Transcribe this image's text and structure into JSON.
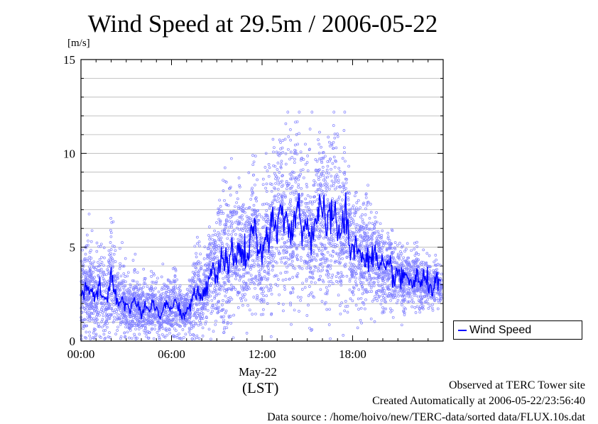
{
  "chart_data": {
    "type": "line",
    "title": "Wind Speed at 29.5m / 2006-05-22",
    "ylabel": "[m/s]",
    "xlabel": "(LST)",
    "x_date_label": "May-22",
    "ylim": [
      0,
      15
    ],
    "yticks": [
      "0",
      "5",
      "10",
      "15"
    ],
    "xlim_hours": [
      0,
      24
    ],
    "xticks": [
      "00:00",
      "06:00",
      "12:00",
      "18:00"
    ],
    "grid": true,
    "legend_position": "right-below-plot",
    "series": [
      {
        "name": "Wind Speed",
        "style": "line-with-scatter",
        "line_color": "#0000ff",
        "marker_color": "#8080ff",
        "x": [
          0.0,
          0.25,
          0.5,
          0.75,
          1.0,
          1.25,
          1.5,
          1.75,
          2.0,
          2.25,
          2.5,
          2.75,
          3.0,
          3.25,
          3.5,
          3.75,
          4.0,
          4.25,
          4.5,
          4.75,
          5.0,
          5.25,
          5.5,
          5.75,
          6.0,
          6.25,
          6.5,
          6.75,
          7.0,
          7.25,
          7.5,
          7.75,
          8.0,
          8.25,
          8.5,
          8.75,
          9.0,
          9.25,
          9.5,
          9.75,
          10.0,
          10.25,
          10.5,
          10.75,
          11.0,
          11.25,
          11.5,
          11.75,
          12.0,
          12.25,
          12.5,
          12.75,
          13.0,
          13.25,
          13.5,
          13.75,
          14.0,
          14.25,
          14.5,
          14.75,
          15.0,
          15.25,
          15.5,
          15.75,
          16.0,
          16.25,
          16.5,
          16.75,
          17.0,
          17.25,
          17.5,
          17.75,
          18.0,
          18.25,
          18.5,
          18.75,
          19.0,
          19.25,
          19.5,
          19.75,
          20.0,
          20.25,
          20.5,
          20.75,
          21.0,
          21.25,
          21.5,
          21.75,
          22.0,
          22.25,
          22.5,
          22.75,
          23.0,
          23.25,
          23.5,
          23.75
        ],
        "y": [
          2.4,
          2.6,
          2.8,
          2.5,
          2.2,
          2.9,
          2.4,
          2.1,
          3.5,
          2.6,
          2.0,
          2.3,
          1.9,
          1.7,
          2.2,
          1.8,
          1.5,
          1.9,
          1.6,
          2.1,
          1.7,
          1.4,
          1.8,
          2.0,
          1.6,
          2.2,
          1.8,
          1.3,
          1.5,
          1.9,
          2.4,
          2.6,
          2.2,
          2.8,
          3.4,
          3.9,
          3.5,
          4.2,
          4.6,
          3.8,
          4.8,
          4.1,
          5.2,
          4.6,
          4.3,
          5.5,
          6.1,
          4.9,
          4.2,
          5.8,
          5.4,
          6.2,
          5.6,
          7.4,
          6.0,
          6.8,
          5.9,
          6.6,
          7.0,
          5.7,
          6.5,
          5.5,
          6.3,
          7.1,
          6.7,
          5.9,
          6.6,
          7.2,
          6.0,
          5.6,
          6.9,
          5.5,
          4.6,
          5.4,
          4.5,
          4.3,
          4.8,
          4.2,
          4.6,
          3.8,
          3.9,
          3.6,
          4.0,
          3.4,
          3.7,
          3.1,
          3.5,
          3.3,
          3.0,
          3.5,
          2.9,
          3.3,
          3.1,
          2.8,
          3.2,
          2.9
        ]
      }
    ]
  },
  "footer": {
    "line1": "Observed at TERC Tower site",
    "line2": "Created Automatically at 2006-05-22/23:56:40",
    "line3": "Data source : /home/hoivo/new/TERC-data/sorted  data/FLUX.10s.dat"
  }
}
